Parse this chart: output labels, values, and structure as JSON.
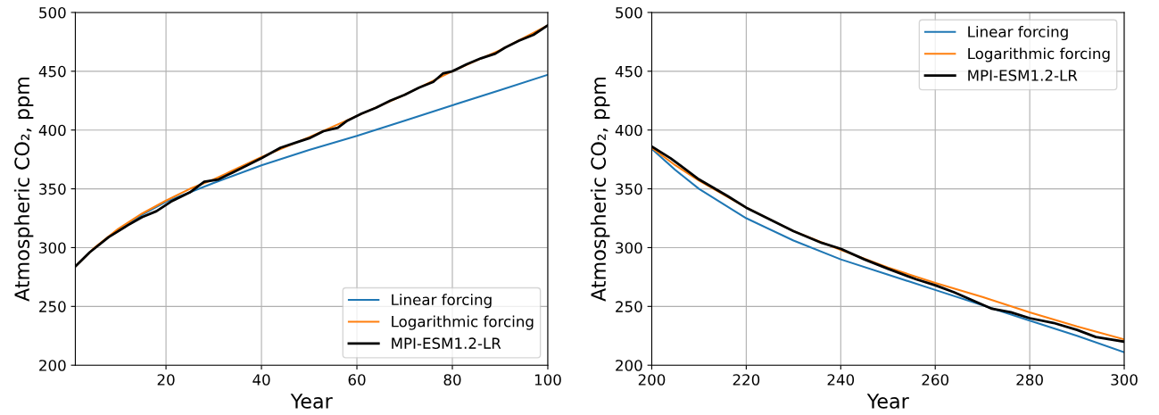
{
  "chart_data": [
    {
      "type": "line",
      "xlabel": "Year",
      "ylabel": "Atmospheric CO₂, ppm",
      "xlim": [
        1,
        100
      ],
      "xticks": [
        20,
        40,
        60,
        80,
        100
      ],
      "ylim": [
        200,
        500
      ],
      "yticks": [
        200,
        250,
        300,
        350,
        400,
        450,
        500
      ],
      "grid": true,
      "legend": "bottom right",
      "series": [
        {
          "name": "Linear forcing",
          "color": "#1f77b4",
          "x": [
            10,
            15,
            20,
            25,
            30,
            40,
            50,
            60,
            70,
            80,
            90,
            100
          ],
          "values": [
            315,
            328,
            339,
            347,
            355,
            370,
            383,
            395,
            408,
            421,
            434,
            447
          ]
        },
        {
          "name": "Logarithmic forcing",
          "color": "#ff7f0e",
          "x": [
            1,
            5,
            10,
            15,
            20,
            25,
            30,
            40,
            50,
            60,
            70,
            80,
            90,
            100
          ],
          "values": [
            284,
            300,
            316,
            329,
            340,
            350,
            358,
            377,
            394,
            412,
            430,
            450,
            468,
            489
          ]
        },
        {
          "name": "MPI-ESM1.2-LR",
          "color": "#000000",
          "x": [
            1,
            4,
            8,
            12,
            15,
            18,
            21,
            25,
            28,
            31,
            34,
            37,
            40,
            44,
            47,
            50,
            53,
            56,
            58,
            61,
            64,
            67,
            70,
            73,
            76,
            78,
            80,
            83,
            86,
            89,
            91,
            94,
            97,
            100
          ],
          "values": [
            284,
            296,
            309,
            319,
            326,
            331,
            339,
            347,
            356,
            358,
            364,
            370,
            376,
            385,
            389,
            393,
            399,
            402,
            408,
            414,
            419,
            425,
            430,
            436,
            441,
            448,
            450,
            456,
            461,
            465,
            470,
            476,
            481,
            489
          ]
        }
      ]
    },
    {
      "type": "line",
      "xlabel": "Year",
      "ylabel": "Atmospheric CO₂, ppm",
      "xlim": [
        200,
        300
      ],
      "xticks": [
        200,
        220,
        240,
        260,
        280,
        300
      ],
      "ylim": [
        200,
        500
      ],
      "yticks": [
        200,
        250,
        300,
        350,
        400,
        450,
        500
      ],
      "grid": true,
      "legend": "top right",
      "series": [
        {
          "name": "Linear forcing",
          "color": "#1f77b4",
          "x": [
            200,
            205,
            210,
            220,
            230,
            240,
            250,
            260,
            270,
            280,
            290,
            300
          ],
          "values": [
            384,
            366,
            350,
            325,
            306,
            290,
            277,
            264,
            251,
            238,
            225,
            211
          ]
        },
        {
          "name": "Logarithmic forcing",
          "color": "#ff7f0e",
          "x": [
            200,
            205,
            210,
            220,
            230,
            240,
            250,
            260,
            270,
            280,
            290,
            300
          ],
          "values": [
            385,
            370,
            357,
            334,
            314,
            298,
            283,
            270,
            258,
            245,
            233,
            222
          ]
        },
        {
          "name": "MPI-ESM1.2-LR",
          "color": "#000000",
          "x": [
            200,
            204,
            210,
            216,
            220,
            226,
            230,
            236,
            240,
            245,
            250,
            256,
            260,
            264,
            268,
            272,
            276,
            280,
            285,
            290,
            294,
            300
          ],
          "values": [
            386,
            376,
            358,
            344,
            334,
            322,
            314,
            304,
            299,
            290,
            282,
            273,
            268,
            262,
            255,
            248,
            245,
            240,
            236,
            230,
            224,
            220
          ]
        }
      ]
    }
  ]
}
